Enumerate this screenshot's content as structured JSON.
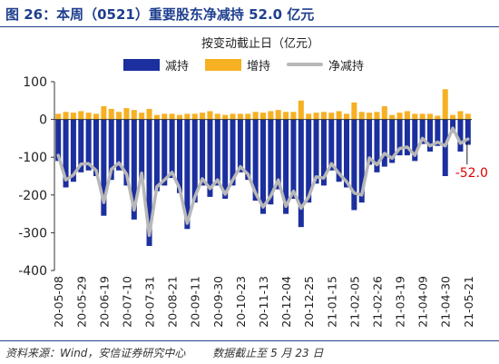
{
  "figure": {
    "title": "图 26：本周（0521）重要股东净减持 52.0 亿元",
    "unit": "按变动截止日（亿元）",
    "source": "资料来源：Wind，安信证券研究中心",
    "note": "数据截止至 5 月 23 日"
  },
  "colors": {
    "reduce": "#1c2f9e",
    "increase": "#f6b022",
    "net": "#b8b8b8",
    "annotation": "#e00000"
  },
  "chart_data": {
    "type": "bar",
    "grid": false,
    "legend_position": "top",
    "ylim": [
      -400,
      100
    ],
    "yticks": [
      100,
      0,
      -100,
      -200,
      -300,
      -400
    ],
    "categories": [
      "20-05-08",
      "20-05-15",
      "20-05-22",
      "20-05-29",
      "20-06-05",
      "20-06-12",
      "20-06-19",
      "20-06-26",
      "20-07-03",
      "20-07-10",
      "20-07-17",
      "20-07-24",
      "20-07-31",
      "20-08-07",
      "20-08-14",
      "20-08-21",
      "20-08-28",
      "20-09-04",
      "20-09-11",
      "20-09-18",
      "20-09-25",
      "20-09-30",
      "20-10-09",
      "20-10-16",
      "20-10-23",
      "20-10-30",
      "20-11-06",
      "20-11-13",
      "20-11-20",
      "20-11-27",
      "20-12-04",
      "20-12-11",
      "20-12-18",
      "20-12-25",
      "20-12-31",
      "21-01-08",
      "21-01-15",
      "21-01-22",
      "21-01-29",
      "21-02-05",
      "21-02-10",
      "21-02-19",
      "21-02-26",
      "21-03-05",
      "21-03-12",
      "21-03-19",
      "21-03-26",
      "21-04-02",
      "21-04-09",
      "21-04-16",
      "21-04-23",
      "21-04-30",
      "21-05-07",
      "21-05-14",
      "21-05-21"
    ],
    "xtick_labels": [
      "20-05-08",
      "20-05-29",
      "20-06-19",
      "20-07-10",
      "20-07-31",
      "20-08-21",
      "20-09-11",
      "20-09-30",
      "20-10-23",
      "20-11-13",
      "20-12-04",
      "20-12-25",
      "21-01-15",
      "21-02-05",
      "21-02-26",
      "21-03-19",
      "21-04-09",
      "21-04-30",
      "21-05-21"
    ],
    "series": [
      {
        "name": "减持",
        "values": [
          -110,
          -180,
          -165,
          -140,
          -135,
          -150,
          -255,
          -160,
          -135,
          -175,
          -265,
          -160,
          -335,
          -190,
          -175,
          -155,
          -195,
          -290,
          -220,
          -175,
          -205,
          -175,
          -210,
          -175,
          -140,
          -160,
          -215,
          -250,
          -225,
          -185,
          -250,
          -210,
          -285,
          -220,
          -170,
          -175,
          -135,
          -165,
          -180,
          -240,
          -220,
          -120,
          -140,
          -125,
          -115,
          -95,
          -95,
          -110,
          -65,
          -85,
          -70,
          -150,
          -35,
          -85,
          -67
        ]
      },
      {
        "name": "增持",
        "values": [
          15,
          20,
          18,
          22,
          18,
          15,
          35,
          28,
          20,
          30,
          25,
          18,
          28,
          12,
          15,
          15,
          12,
          15,
          15,
          18,
          22,
          15,
          12,
          15,
          15,
          15,
          20,
          18,
          22,
          25,
          20,
          20,
          50,
          15,
          18,
          20,
          18,
          22,
          15,
          45,
          20,
          18,
          20,
          35,
          12,
          18,
          22,
          15,
          15,
          15,
          10,
          80,
          12,
          22,
          15
        ]
      },
      {
        "name": "净减持",
        "values": [
          -95,
          -160,
          -147,
          -118,
          -117,
          -135,
          -220,
          -132,
          -115,
          -145,
          -240,
          -142,
          -307,
          -178,
          -160,
          -140,
          -183,
          -275,
          -205,
          -157,
          -183,
          -160,
          -198,
          -160,
          -125,
          -145,
          -195,
          -232,
          -203,
          -160,
          -230,
          -190,
          -235,
          -205,
          -152,
          -155,
          -117,
          -143,
          -165,
          -195,
          -200,
          -102,
          -120,
          -90,
          -103,
          -77,
          -73,
          -95,
          -50,
          -70,
          -60,
          -70,
          -23,
          -63,
          -52.0
        ]
      }
    ],
    "annotation": {
      "text": "-52.0",
      "category": "21-05-21",
      "value": -52.0
    }
  }
}
